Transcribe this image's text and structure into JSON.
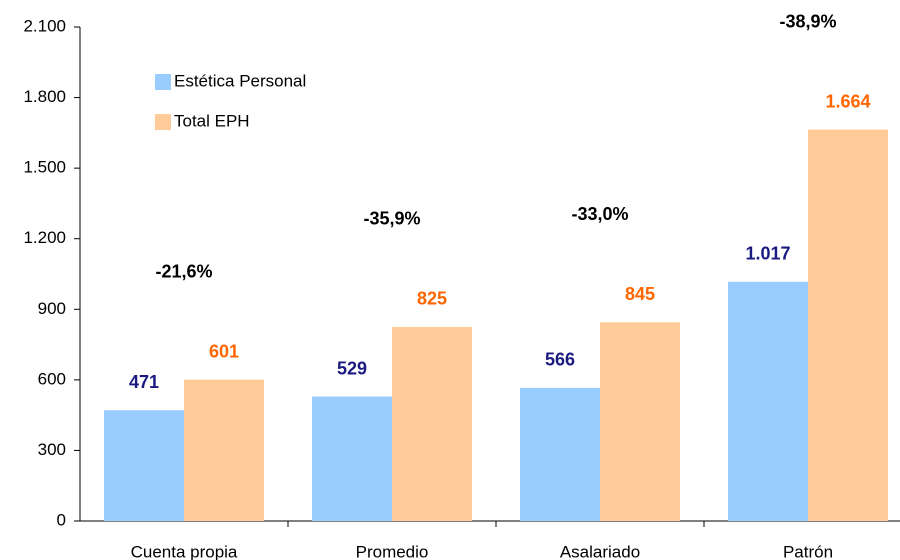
{
  "chart_data": {
    "type": "bar",
    "categories": [
      "Cuenta propia",
      "Promedio",
      "Asalariado",
      "Patrón"
    ],
    "series": [
      {
        "name": "Estética Personal",
        "color": "#99ccff",
        "label_color": "#1a1a80",
        "values": [
          471,
          529,
          566,
          1017
        ],
        "value_labels": [
          "471",
          "529",
          "566",
          "1.017"
        ]
      },
      {
        "name": "Total EPH",
        "color": "#ffcc99",
        "label_color": "#ff6600",
        "values": [
          601,
          825,
          845,
          1664
        ],
        "value_labels": [
          "601",
          "825",
          "845",
          "1.664"
        ]
      }
    ],
    "annotations": [
      "-21,6%",
      "-35,9%",
      "-33,0%",
      "-38,9%"
    ],
    "ylim": [
      0,
      2100
    ],
    "yticks": [
      0,
      300,
      600,
      900,
      {
        "value": 1200,
        "label": "1.200"
      },
      {
        "value": 1500,
        "label": "1.500"
      },
      {
        "value": 1800,
        "label": "1.800"
      },
      {
        "value": 2100,
        "label": "2.100"
      }
    ],
    "grid": false,
    "legend": "upper left"
  }
}
